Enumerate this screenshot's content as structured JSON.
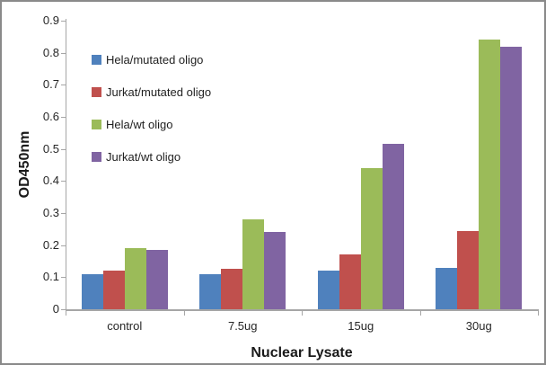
{
  "chart_data": {
    "type": "bar",
    "title": "",
    "xlabel": "Nuclear Lysate",
    "ylabel": "OD450nm",
    "categories": [
      "control",
      "7.5ug",
      "15ug",
      "30ug"
    ],
    "series": [
      {
        "name": "Hela/mutated oligo",
        "color": "#4F81BD",
        "values": [
          0.11,
          0.11,
          0.12,
          0.13
        ]
      },
      {
        "name": "Jurkat/mutated oligo",
        "color": "#C0504D",
        "values": [
          0.12,
          0.125,
          0.17,
          0.245
        ]
      },
      {
        "name": "Hela/wt oligo",
        "color": "#9BBB59",
        "values": [
          0.19,
          0.28,
          0.44,
          0.84
        ]
      },
      {
        "name": "Jurkat/wt oligo",
        "color": "#8064A2",
        "values": [
          0.185,
          0.24,
          0.515,
          0.82
        ]
      }
    ],
    "ylim": [
      0,
      0.9
    ],
    "ytick_step": 0.1,
    "ytick_labels": [
      "0",
      "0.1",
      "0.2",
      "0.3",
      "0.4",
      "0.5",
      "0.6",
      "0.7",
      "0.8",
      "0.9"
    ],
    "legend_position": "upper-left-inside",
    "grid": false,
    "axis_color": "#A6A6A6",
    "text_color": "#262626"
  }
}
